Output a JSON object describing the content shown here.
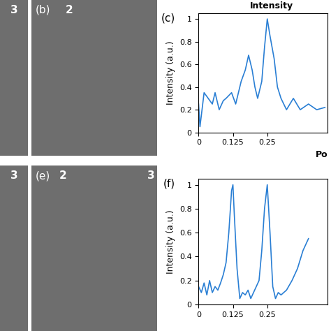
{
  "image_panels": [
    {
      "texts": [
        "3"
      ]
    },
    {
      "label": "(b)",
      "texts": [
        "2"
      ]
    },
    {
      "texts": [
        "3"
      ]
    },
    {
      "label": "(e)",
      "texts": [
        "2",
        "3"
      ]
    }
  ],
  "chart_data": [
    {
      "type": "line",
      "panel_label": "(c)",
      "title": "Intensity",
      "y_label": "Intensity (a.u.)",
      "x_label": "Po",
      "x": [
        0,
        0.005,
        0.02,
        0.05,
        0.06,
        0.075,
        0.09,
        0.1,
        0.12,
        0.135,
        0.155,
        0.17,
        0.182,
        0.195,
        0.205,
        0.215,
        0.23,
        0.24,
        0.25,
        0.26,
        0.275,
        0.287,
        0.3,
        0.32,
        0.345,
        0.37,
        0.4,
        0.43,
        0.46
      ],
      "values": [
        0.25,
        0.05,
        0.35,
        0.25,
        0.35,
        0.2,
        0.28,
        0.3,
        0.35,
        0.25,
        0.45,
        0.55,
        0.68,
        0.55,
        0.4,
        0.3,
        0.45,
        0.75,
        1.0,
        0.85,
        0.65,
        0.4,
        0.3,
        0.2,
        0.3,
        0.2,
        0.25,
        0.2,
        0.22
      ],
      "color": "#2a7fd4",
      "xlim": [
        0,
        0.47
      ],
      "ylim": [
        0,
        1.05
      ],
      "xticks": [
        0,
        0.125,
        0.25
      ],
      "yticks": [
        0,
        0.2,
        0.4,
        0.6,
        0.8,
        1
      ]
    },
    {
      "type": "line",
      "panel_label": "(f)",
      "y_label": "Intensity (a.u.)",
      "x": [
        0,
        0.01,
        0.02,
        0.03,
        0.04,
        0.05,
        0.06,
        0.07,
        0.08,
        0.09,
        0.1,
        0.11,
        0.12,
        0.125,
        0.13,
        0.14,
        0.15,
        0.16,
        0.17,
        0.18,
        0.19,
        0.2,
        0.21,
        0.22,
        0.23,
        0.24,
        0.25,
        0.26,
        0.27,
        0.28,
        0.29,
        0.3,
        0.32,
        0.34,
        0.36,
        0.38,
        0.4
      ],
      "values": [
        0.15,
        0.1,
        0.18,
        0.08,
        0.2,
        0.1,
        0.15,
        0.12,
        0.18,
        0.25,
        0.35,
        0.6,
        0.95,
        1.0,
        0.75,
        0.3,
        0.05,
        0.1,
        0.08,
        0.12,
        0.05,
        0.1,
        0.15,
        0.2,
        0.45,
        0.8,
        1.0,
        0.6,
        0.15,
        0.05,
        0.1,
        0.08,
        0.12,
        0.2,
        0.3,
        0.45,
        0.55
      ],
      "color": "#2a7fd4",
      "xlim": [
        0,
        0.47
      ],
      "ylim": [
        0,
        1.05
      ],
      "xticks": [
        0,
        0.125,
        0.25
      ],
      "yticks": [
        0,
        0.2,
        0.4,
        0.6,
        0.8,
        1
      ]
    }
  ]
}
